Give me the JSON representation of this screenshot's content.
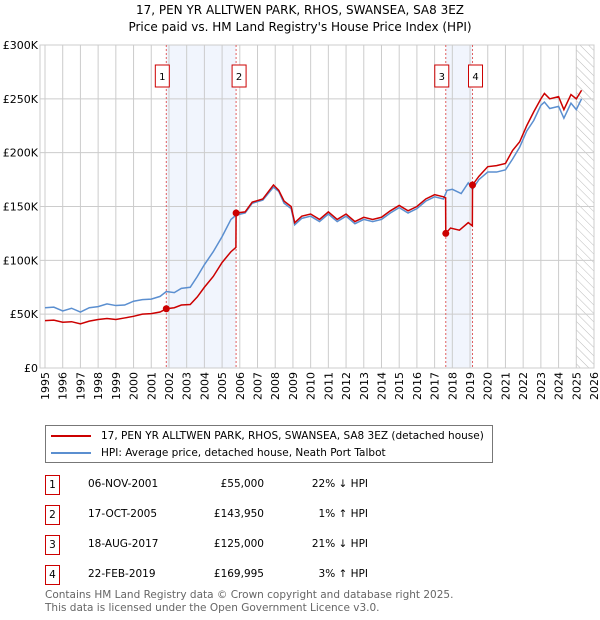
{
  "chart_data": {
    "type": "line",
    "title": "17, PEN YR ALLTWEN PARK, RHOS, SWANSEA, SA8 3EZ",
    "subtitle": "Price paid vs. HM Land Registry's House Price Index (HPI)",
    "xlim": [
      1995,
      2026
    ],
    "ylim": [
      0,
      300000
    ],
    "x_ticks": [
      "1995",
      "1996",
      "1997",
      "1998",
      "1999",
      "2000",
      "2001",
      "2002",
      "2003",
      "2004",
      "2005",
      "2006",
      "2007",
      "2008",
      "2009",
      "2010",
      "2011",
      "2012",
      "2013",
      "2014",
      "2015",
      "2016",
      "2017",
      "2018",
      "2019",
      "2020",
      "2021",
      "2022",
      "2023",
      "2024",
      "2025",
      "2026"
    ],
    "y_ticks": [
      {
        "v": 0,
        "label": "£0"
      },
      {
        "v": 50000,
        "label": "£50K"
      },
      {
        "v": 100000,
        "label": "£100K"
      },
      {
        "v": 150000,
        "label": "£150K"
      },
      {
        "v": 200000,
        "label": "£200K"
      },
      {
        "v": 250000,
        "label": "£250K"
      },
      {
        "v": 300000,
        "label": "£300K"
      }
    ],
    "grid": true,
    "forecast_hatch_from": 2025,
    "shaded_ranges": [
      [
        2001.85,
        2005.79
      ],
      [
        2017.63,
        2019.14
      ]
    ],
    "series": [
      {
        "name": "17, PEN YR ALLTWEN PARK, RHOS, SWANSEA, SA8 3EZ (detached house)",
        "color": "#cc0000",
        "points": [
          [
            1995,
            44000
          ],
          [
            1995.5,
            44500
          ],
          [
            1996,
            42500
          ],
          [
            1996.5,
            43000
          ],
          [
            1997,
            41000
          ],
          [
            1997.5,
            43500
          ],
          [
            1998,
            45000
          ],
          [
            1998.5,
            46000
          ],
          [
            1999,
            45000
          ],
          [
            1999.5,
            46500
          ],
          [
            2000,
            48000
          ],
          [
            2000.5,
            50000
          ],
          [
            2001,
            50500
          ],
          [
            2001.5,
            52000
          ],
          [
            2001.85,
            55000
          ],
          [
            2002.3,
            56000
          ],
          [
            2002.7,
            58500
          ],
          [
            2003.2,
            59000
          ],
          [
            2003.6,
            66000
          ],
          [
            2004,
            75000
          ],
          [
            2004.5,
            85000
          ],
          [
            2005,
            98000
          ],
          [
            2005.5,
            108000
          ],
          [
            2005.78,
            112000
          ],
          [
            2005.79,
            143950
          ],
          [
            2006.3,
            145000
          ],
          [
            2006.7,
            154000
          ],
          [
            2007.3,
            157000
          ],
          [
            2007.9,
            170000
          ],
          [
            2008.2,
            165000
          ],
          [
            2008.5,
            155000
          ],
          [
            2008.9,
            150000
          ],
          [
            2009.1,
            135000
          ],
          [
            2009.5,
            141000
          ],
          [
            2010,
            143000
          ],
          [
            2010.5,
            138000
          ],
          [
            2011,
            145000
          ],
          [
            2011.5,
            138000
          ],
          [
            2012,
            143000
          ],
          [
            2012.5,
            136000
          ],
          [
            2013,
            140000
          ],
          [
            2013.5,
            138000
          ],
          [
            2014,
            140000
          ],
          [
            2014.5,
            146000
          ],
          [
            2015,
            151000
          ],
          [
            2015.5,
            146000
          ],
          [
            2016,
            150000
          ],
          [
            2016.5,
            157000
          ],
          [
            2017,
            161000
          ],
          [
            2017.5,
            159000
          ],
          [
            2017.62,
            158000
          ],
          [
            2017.63,
            125000
          ],
          [
            2017.9,
            130000
          ],
          [
            2018.4,
            128000
          ],
          [
            2018.9,
            135000
          ],
          [
            2019.13,
            132000
          ],
          [
            2019.14,
            169995
          ],
          [
            2019.5,
            178000
          ],
          [
            2020,
            187000
          ],
          [
            2020.5,
            188000
          ],
          [
            2021,
            190000
          ],
          [
            2021.4,
            202000
          ],
          [
            2021.8,
            210000
          ],
          [
            2022.2,
            225000
          ],
          [
            2022.6,
            238000
          ],
          [
            2023,
            250000
          ],
          [
            2023.2,
            255000
          ],
          [
            2023.5,
            250000
          ],
          [
            2024,
            252000
          ],
          [
            2024.3,
            240000
          ],
          [
            2024.7,
            254000
          ],
          [
            2025,
            250000
          ],
          [
            2025.3,
            258000
          ]
        ]
      },
      {
        "name": "HPI: Average price, detached house, Neath Port Talbot",
        "color": "#5b8fd0",
        "points": [
          [
            1995,
            56000
          ],
          [
            1995.5,
            56500
          ],
          [
            1996,
            53000
          ],
          [
            1996.5,
            55500
          ],
          [
            1997,
            52000
          ],
          [
            1997.5,
            56000
          ],
          [
            1998,
            57000
          ],
          [
            1998.5,
            59500
          ],
          [
            1999,
            58000
          ],
          [
            1999.5,
            58500
          ],
          [
            2000,
            62000
          ],
          [
            2000.5,
            63500
          ],
          [
            2001,
            64000
          ],
          [
            2001.5,
            66500
          ],
          [
            2001.85,
            71000
          ],
          [
            2002.3,
            70000
          ],
          [
            2002.7,
            74000
          ],
          [
            2003.2,
            75000
          ],
          [
            2003.6,
            85000
          ],
          [
            2004,
            96000
          ],
          [
            2004.5,
            108000
          ],
          [
            2005,
            122000
          ],
          [
            2005.5,
            138000
          ],
          [
            2005.79,
            142000
          ],
          [
            2006.3,
            144000
          ],
          [
            2006.7,
            153000
          ],
          [
            2007.3,
            156000
          ],
          [
            2007.9,
            168000
          ],
          [
            2008.2,
            164000
          ],
          [
            2008.5,
            153000
          ],
          [
            2008.9,
            148000
          ],
          [
            2009.1,
            133000
          ],
          [
            2009.5,
            139000
          ],
          [
            2010,
            141000
          ],
          [
            2010.5,
            136000
          ],
          [
            2011,
            143000
          ],
          [
            2011.5,
            136000
          ],
          [
            2012,
            141000
          ],
          [
            2012.5,
            134000
          ],
          [
            2013,
            138000
          ],
          [
            2013.5,
            136000
          ],
          [
            2014,
            138000
          ],
          [
            2014.5,
            144000
          ],
          [
            2015,
            149000
          ],
          [
            2015.5,
            144000
          ],
          [
            2016,
            148000
          ],
          [
            2016.5,
            155000
          ],
          [
            2017,
            159000
          ],
          [
            2017.5,
            157000
          ],
          [
            2017.7,
            165000
          ],
          [
            2018,
            166000
          ],
          [
            2018.5,
            162000
          ],
          [
            2018.9,
            172000
          ],
          [
            2019.14,
            166000
          ],
          [
            2019.5,
            175000
          ],
          [
            2020,
            182000
          ],
          [
            2020.5,
            182000
          ],
          [
            2021,
            184000
          ],
          [
            2021.4,
            194000
          ],
          [
            2021.8,
            205000
          ],
          [
            2022.2,
            220000
          ],
          [
            2022.6,
            230000
          ],
          [
            2023,
            244000
          ],
          [
            2023.2,
            247000
          ],
          [
            2023.5,
            241000
          ],
          [
            2024,
            243000
          ],
          [
            2024.3,
            232000
          ],
          [
            2024.7,
            246000
          ],
          [
            2025,
            240000
          ],
          [
            2025.3,
            250000
          ]
        ]
      }
    ],
    "sales": [
      {
        "n": "1",
        "x": 2001.85,
        "price": 55000,
        "date": "06-NOV-2001",
        "price_label": "£55,000",
        "hpi": "22% ↓ HPI"
      },
      {
        "n": "2",
        "x": 2005.79,
        "price": 143950,
        "date": "17-OCT-2005",
        "price_label": "£143,950",
        "hpi": "1% ↑ HPI"
      },
      {
        "n": "3",
        "x": 2017.63,
        "price": 125000,
        "date": "18-AUG-2017",
        "price_label": "£125,000",
        "hpi": "21% ↓ HPI"
      },
      {
        "n": "4",
        "x": 2019.14,
        "price": 169995,
        "date": "22-FEB-2019",
        "price_label": "£169,995",
        "hpi": "3% ↑ HPI"
      }
    ]
  },
  "footer": {
    "line1": "Contains HM Land Registry data © Crown copyright and database right 2025.",
    "line2": "This data is licensed under the Open Government Licence v3.0."
  }
}
